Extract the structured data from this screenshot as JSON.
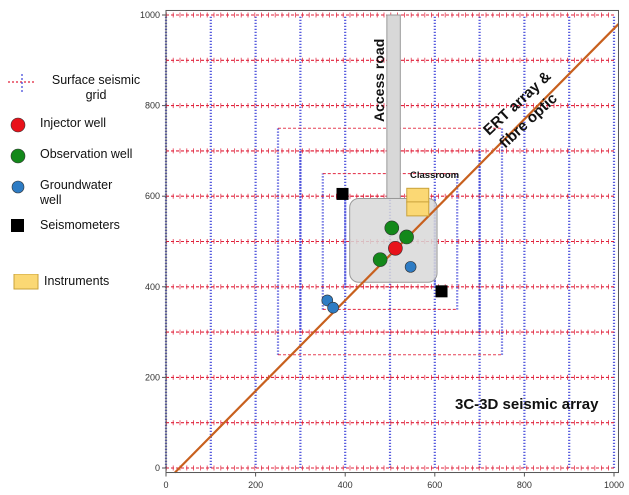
{
  "legend": {
    "items": [
      {
        "id": "seismic",
        "label": "Surface seismic grid"
      },
      {
        "id": "injector",
        "label": "Injector well",
        "color": "#e8121a"
      },
      {
        "id": "observation",
        "label": "Observation well",
        "color": "#13881a"
      },
      {
        "id": "groundwater",
        "label": "Groundwater well",
        "color": "#2e7cc4"
      },
      {
        "id": "seismometer",
        "label": "Seismometers",
        "color": "#000000"
      },
      {
        "id": "instruments",
        "label": "Instruments",
        "color": "#fbd874"
      }
    ]
  },
  "map": {
    "x_ticks": [
      "0",
      "200",
      "400",
      "600",
      "800",
      "1000"
    ],
    "y_ticks": [
      "0",
      "200",
      "400",
      "600",
      "800",
      "1000"
    ],
    "labels": {
      "access_road": "Access road",
      "ert_line1": "ERT array &",
      "ert_line2": "fibre optic",
      "classroom": "Classroom",
      "array": "3C-3D seismic array"
    },
    "colors": {
      "seismic_line": "#e0203a",
      "receiver_line": "#3a3fd8",
      "ert_line": "#c8601e",
      "pad": "#d8d8d8"
    },
    "injector_wells": [
      [
        512,
        485
      ]
    ],
    "observation_wells": [
      [
        504,
        530
      ],
      [
        537,
        510
      ],
      [
        478,
        460
      ]
    ],
    "groundwater_wells": [
      [
        360,
        370
      ],
      [
        373,
        354
      ],
      [
        546,
        444
      ]
    ],
    "seismometers": [
      [
        394,
        605
      ],
      [
        615,
        390
      ]
    ],
    "instruments": [
      [
        562,
        602
      ],
      [
        562,
        572
      ]
    ]
  }
}
